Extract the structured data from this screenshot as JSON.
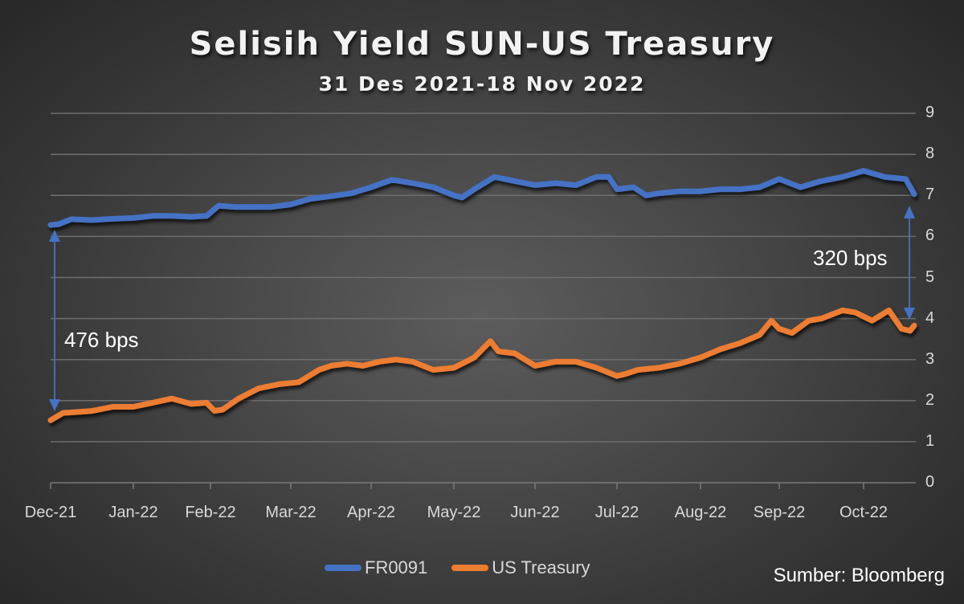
{
  "header": {
    "title": "Selisih Yield SUN-US Treasury",
    "subtitle": "31 Des 2021-18 Nov 2022"
  },
  "source": "Sumber: Bloomberg",
  "legend": [
    {
      "label": "FR0091",
      "color": "#4472C4"
    },
    {
      "label": "US Treasury",
      "color": "#ED7D31"
    }
  ],
  "annotations": {
    "start_spread": "476 bps",
    "end_spread": "320 bps",
    "arrow_color": "#4472C4"
  },
  "axes": {
    "y_ticks": [
      "9",
      "8",
      "7",
      "6",
      "5",
      "4",
      "3",
      "2",
      "1",
      "0"
    ],
    "x_ticks": [
      "Dec-21",
      "Jan-22",
      "Feb-22",
      "Mar-22",
      "Apr-22",
      "May-22",
      "Jun-22",
      "Jul-22",
      "Aug-22",
      "Sep-22",
      "Oct-22"
    ]
  },
  "chart_data": {
    "type": "line",
    "title": "Selisih Yield SUN-US Treasury",
    "subtitle": "31 Des 2021-18 Nov 2022",
    "xlabel": "",
    "ylabel": "",
    "ylim": [
      0,
      9
    ],
    "y_axis_position": "right",
    "grid": true,
    "legend_position": "bottom",
    "categories": [
      "Dec-21",
      "Jan-22",
      "Feb-22",
      "Mar-22",
      "Apr-22",
      "May-22",
      "Jun-22",
      "Jul-22",
      "Aug-22",
      "Sep-22",
      "Oct-22"
    ],
    "annotations": [
      {
        "text": "476 bps",
        "at": "start",
        "from": 6.28,
        "to": 1.52
      },
      {
        "text": "320 bps",
        "at": "end",
        "from": 7.03,
        "to": 3.83
      }
    ],
    "series": [
      {
        "name": "FR0091",
        "color": "#4472C4",
        "x_months": [
          0,
          0.1,
          0.25,
          0.5,
          0.75,
          1.0,
          1.25,
          1.5,
          1.75,
          1.95,
          2.1,
          2.3,
          2.5,
          2.75,
          3.0,
          3.25,
          3.5,
          3.75,
          4.0,
          4.25,
          4.35,
          4.5,
          4.75,
          5.0,
          5.1,
          5.25,
          5.5,
          5.75,
          6.0,
          6.25,
          6.5,
          6.75,
          6.9,
          7.0,
          7.2,
          7.35,
          7.5,
          7.75,
          8.0,
          8.25,
          8.5,
          8.75,
          9.0,
          9.25,
          9.5,
          9.75,
          10.0,
          10.25,
          10.5,
          10.6
        ],
        "values": [
          6.28,
          6.3,
          6.42,
          6.4,
          6.43,
          6.45,
          6.5,
          6.5,
          6.48,
          6.5,
          6.75,
          6.72,
          6.72,
          6.72,
          6.78,
          6.92,
          6.98,
          7.05,
          7.2,
          7.38,
          7.35,
          7.3,
          7.2,
          7.0,
          6.95,
          7.15,
          7.45,
          7.35,
          7.25,
          7.3,
          7.25,
          7.45,
          7.45,
          7.15,
          7.2,
          7.0,
          7.05,
          7.1,
          7.1,
          7.15,
          7.15,
          7.2,
          7.4,
          7.2,
          7.35,
          7.45,
          7.6,
          7.45,
          7.4,
          7.03
        ]
      },
      {
        "name": "US Treasury",
        "color": "#ED7D31",
        "x_months": [
          0,
          0.15,
          0.3,
          0.5,
          0.75,
          1.0,
          1.25,
          1.5,
          1.75,
          1.95,
          2.05,
          2.15,
          2.35,
          2.6,
          2.85,
          3.1,
          3.35,
          3.5,
          3.7,
          3.9,
          4.1,
          4.3,
          4.5,
          4.75,
          5.0,
          5.25,
          5.45,
          5.55,
          5.75,
          6.0,
          6.25,
          6.5,
          6.75,
          7.0,
          7.1,
          7.25,
          7.5,
          7.75,
          8.0,
          8.25,
          8.5,
          8.75,
          8.9,
          9.0,
          9.15,
          9.35,
          9.5,
          9.75,
          9.9,
          10.1,
          10.3,
          10.45,
          10.55,
          10.6
        ],
        "values": [
          1.52,
          1.7,
          1.72,
          1.75,
          1.85,
          1.85,
          1.95,
          2.05,
          1.92,
          1.95,
          1.75,
          1.78,
          2.05,
          2.3,
          2.4,
          2.45,
          2.75,
          2.85,
          2.9,
          2.85,
          2.95,
          3.0,
          2.95,
          2.75,
          2.8,
          3.05,
          3.45,
          3.2,
          3.15,
          2.85,
          2.95,
          2.95,
          2.8,
          2.6,
          2.65,
          2.75,
          2.8,
          2.9,
          3.05,
          3.25,
          3.4,
          3.6,
          3.95,
          3.75,
          3.65,
          3.95,
          4.0,
          4.2,
          4.15,
          3.95,
          4.2,
          3.75,
          3.7,
          3.83
        ]
      }
    ]
  }
}
